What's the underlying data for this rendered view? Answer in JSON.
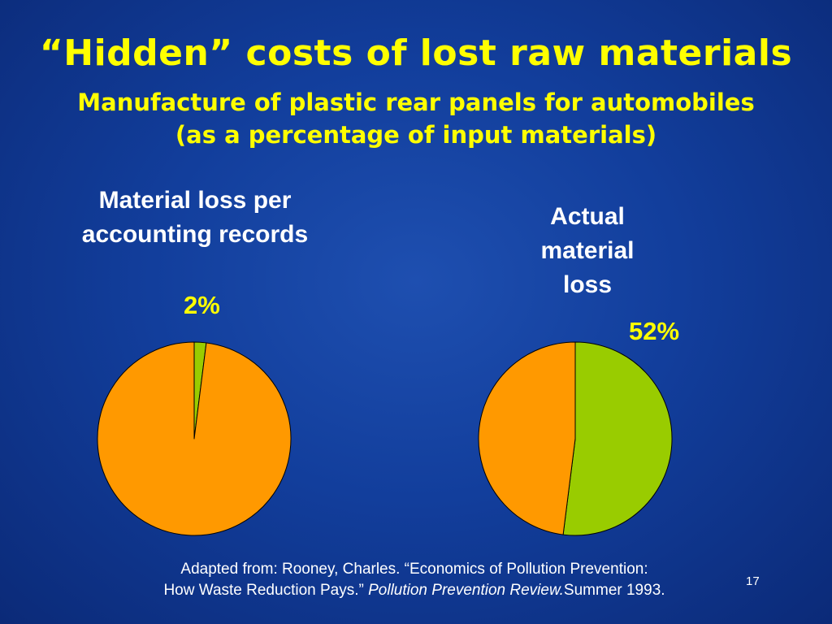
{
  "slide": {
    "title": "“Hidden” costs of lost raw materials",
    "subtitle_lines": [
      "Manufacture of plastic rear panels for automobiles",
      "(as a percentage of input materials)"
    ],
    "citation": {
      "line1": "Adapted from: Rooney, Charles. “Economics of Pollution Prevention:",
      "line2_prefix": "How Waste Reduction Pays.” ",
      "line2_journal": "Pollution Prevention Review.",
      "line2_suffix": "Summer 1993."
    },
    "page_number": "17"
  },
  "colors": {
    "background": "#123e9c",
    "title": "#ffff00",
    "loss": "#99cc00",
    "retained": "#ff9900",
    "outline": "#000000"
  },
  "chart_data": [
    {
      "type": "pie",
      "title_lines": [
        "Material loss per",
        "accounting records"
      ],
      "data_label": "2%",
      "slices": [
        {
          "value": 2,
          "color": "#99cc00"
        },
        {
          "value": 98,
          "color": "#ff9900"
        }
      ],
      "start_angle_deg": 0,
      "legend": "none"
    },
    {
      "type": "pie",
      "title_lines": [
        "Actual",
        "material",
        "loss"
      ],
      "data_label": "52%",
      "slices": [
        {
          "value": 52,
          "color": "#99cc00"
        },
        {
          "value": 48,
          "color": "#ff9900"
        }
      ],
      "start_angle_deg": 0,
      "legend": "none"
    }
  ]
}
